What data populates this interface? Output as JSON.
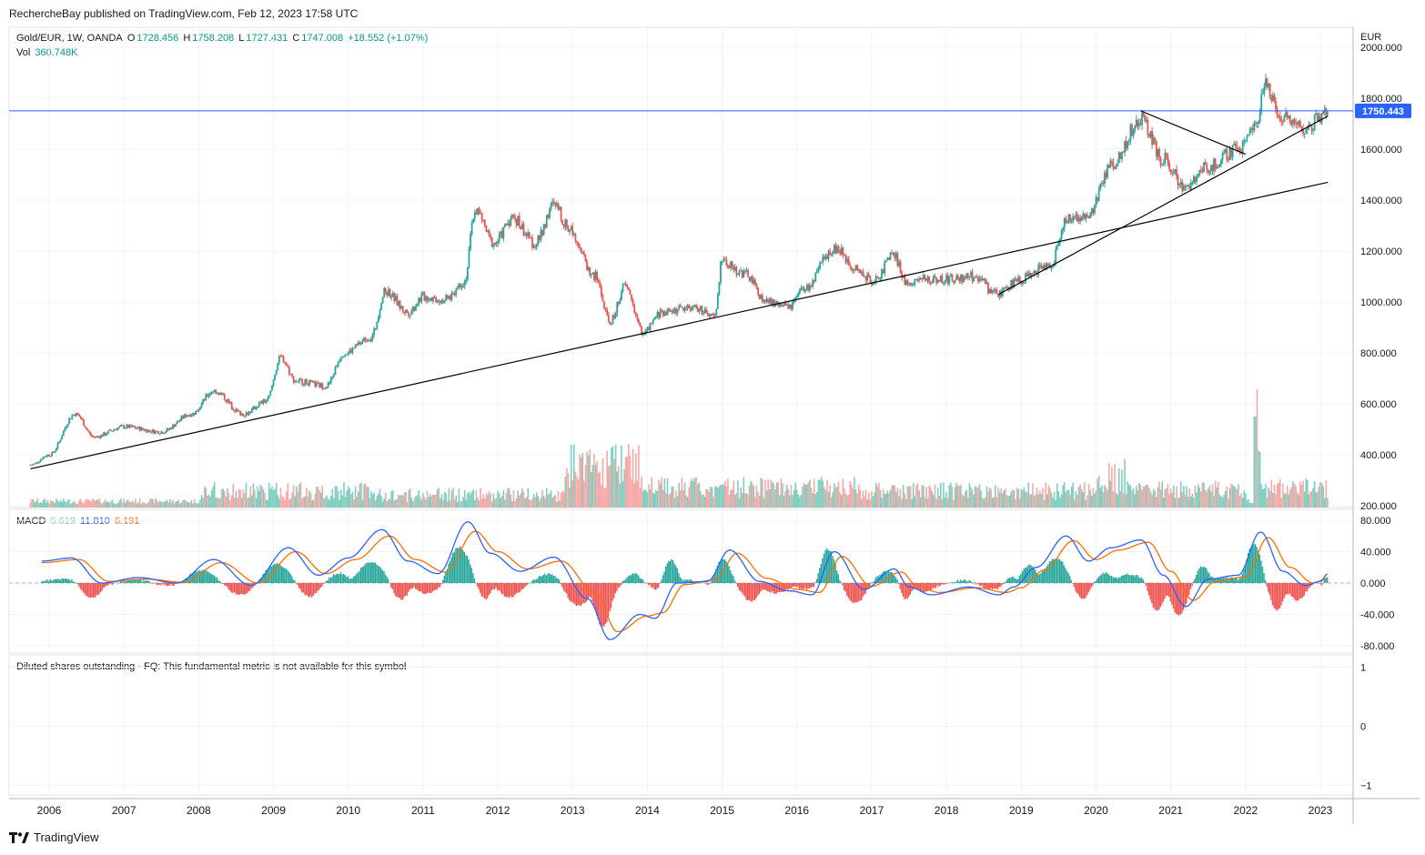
{
  "header": {
    "publisher": "RechercheBay published on TradingView.com, Feb 12, 2023 17:58 UTC"
  },
  "price_legend": {
    "symbol": "Gold/EUR, 1W, OANDA",
    "o_label": "O",
    "o": "1728.456",
    "h_label": "H",
    "h": "1758.208",
    "l_label": "L",
    "l": "1727.431",
    "c_label": "C",
    "c": "1747.008",
    "change": "+18.552 (+1.07%)",
    "vol_label": "Vol",
    "vol": "360.748K"
  },
  "macd_legend": {
    "label": "MACD",
    "hist": "5.619",
    "macd": "11.810",
    "signal": "6.191"
  },
  "fund_legend": {
    "text": "Diluted shares outstanding · FQ: This fundamental metric is not available for this symbol"
  },
  "currency": "EUR",
  "last_price_tag": "1750.443",
  "brand": {
    "name": "TradingView"
  },
  "colors": {
    "up": "#26a69a",
    "down": "#ef5350",
    "macd": "#2962ff",
    "signal": "#ff6d00",
    "price_line": "#2962ff",
    "trendline": "#000000"
  },
  "chart_data": [
    {
      "type": "candlestick",
      "pane": "price",
      "x_ticks": [
        "2006",
        "2007",
        "2008",
        "2009",
        "2010",
        "2011",
        "2012",
        "2013",
        "2014",
        "2015",
        "2016",
        "2017",
        "2018",
        "2019",
        "2020",
        "2021",
        "2022",
        "2023"
      ],
      "y_ticks": [
        "2000.000",
        "1800.000",
        "1600.000",
        "1400.000",
        "1200.000",
        "1000.000",
        "800.000",
        "600.000",
        "400.000",
        "200.000"
      ],
      "ylim": [
        200,
        2000
      ],
      "weekly_close_anchors": [
        [
          2005.75,
          360
        ],
        [
          2006.0,
          400
        ],
        [
          2006.35,
          560
        ],
        [
          2006.6,
          470
        ],
        [
          2007.0,
          510
        ],
        [
          2007.5,
          490
        ],
        [
          2007.9,
          560
        ],
        [
          2008.2,
          650
        ],
        [
          2008.6,
          560
        ],
        [
          2008.9,
          610
        ],
        [
          2009.1,
          780
        ],
        [
          2009.3,
          690
        ],
        [
          2009.7,
          670
        ],
        [
          2009.95,
          800
        ],
        [
          2010.3,
          860
        ],
        [
          2010.5,
          1040
        ],
        [
          2010.8,
          960
        ],
        [
          2011.0,
          1020
        ],
        [
          2011.3,
          1010
        ],
        [
          2011.55,
          1080
        ],
        [
          2011.7,
          1360
        ],
        [
          2011.95,
          1230
        ],
        [
          2012.2,
          1330
        ],
        [
          2012.5,
          1230
        ],
        [
          2012.75,
          1380
        ],
        [
          2012.95,
          1290
        ],
        [
          2013.3,
          1100
        ],
        [
          2013.5,
          920
        ],
        [
          2013.7,
          1060
        ],
        [
          2013.95,
          880
        ],
        [
          2014.2,
          960
        ],
        [
          2014.6,
          980
        ],
        [
          2014.9,
          940
        ],
        [
          2015.0,
          1160
        ],
        [
          2015.3,
          1110
        ],
        [
          2015.6,
          1000
        ],
        [
          2015.9,
          980
        ],
        [
          2016.1,
          1050
        ],
        [
          2016.5,
          1210
        ],
        [
          2016.85,
          1120
        ],
        [
          2017.0,
          1080
        ],
        [
          2017.3,
          1180
        ],
        [
          2017.45,
          1080
        ],
        [
          2017.8,
          1090
        ],
        [
          2018.1,
          1090
        ],
        [
          2018.4,
          1100
        ],
        [
          2018.65,
          1030
        ],
        [
          2019.0,
          1090
        ],
        [
          2019.4,
          1150
        ],
        [
          2019.6,
          1320
        ],
        [
          2019.9,
          1340
        ],
        [
          2020.2,
          1530
        ],
        [
          2020.6,
          1720
        ],
        [
          2020.9,
          1560
        ],
        [
          2021.2,
          1450
        ],
        [
          2021.5,
          1530
        ],
        [
          2021.9,
          1600
        ],
        [
          2022.15,
          1700
        ],
        [
          2022.25,
          1850
        ],
        [
          2022.5,
          1730
        ],
        [
          2022.8,
          1680
        ],
        [
          2023.0,
          1720
        ],
        [
          2023.1,
          1747
        ]
      ],
      "last_close": 1747.008,
      "horizontal_line": 1750.443,
      "trendlines": [
        {
          "from": [
            2005.75,
            345
          ],
          "to": [
            2023.1,
            1470
          ]
        },
        {
          "from": [
            2018.7,
            1030
          ],
          "to": [
            2023.1,
            1730
          ]
        },
        {
          "from": [
            2020.6,
            1750
          ],
          "to": [
            2022.0,
            1580
          ]
        }
      ],
      "volume_peak": "2022-03",
      "volume_last": "360.748K"
    },
    {
      "type": "line",
      "pane": "MACD",
      "y_ticks": [
        "80.000",
        "40.000",
        "0.000",
        "-40.000",
        "-80.000"
      ],
      "ylim": [
        -80,
        80
      ],
      "macd_anchors": [
        [
          2005.9,
          28
        ],
        [
          2006.3,
          32
        ],
        [
          2006.7,
          0
        ],
        [
          2007.2,
          7
        ],
        [
          2007.7,
          0
        ],
        [
          2008.2,
          30
        ],
        [
          2008.7,
          -3
        ],
        [
          2009.2,
          45
        ],
        [
          2009.6,
          10
        ],
        [
          2010.0,
          32
        ],
        [
          2010.45,
          68
        ],
        [
          2010.8,
          28
        ],
        [
          2011.2,
          12
        ],
        [
          2011.6,
          78
        ],
        [
          2011.9,
          38
        ],
        [
          2012.3,
          15
        ],
        [
          2012.75,
          33
        ],
        [
          2013.2,
          -20
        ],
        [
          2013.5,
          -72
        ],
        [
          2013.9,
          -40
        ],
        [
          2014.1,
          -45
        ],
        [
          2014.4,
          0
        ],
        [
          2014.8,
          2
        ],
        [
          2015.1,
          42
        ],
        [
          2015.5,
          2
        ],
        [
          2015.9,
          -10
        ],
        [
          2016.2,
          -15
        ],
        [
          2016.5,
          40
        ],
        [
          2016.9,
          -8
        ],
        [
          2017.3,
          18
        ],
        [
          2017.5,
          -5
        ],
        [
          2017.8,
          -15
        ],
        [
          2018.3,
          -5
        ],
        [
          2018.7,
          -15
        ],
        [
          2018.9,
          -5
        ],
        [
          2019.2,
          20
        ],
        [
          2019.6,
          60
        ],
        [
          2019.9,
          28
        ],
        [
          2020.2,
          45
        ],
        [
          2020.6,
          55
        ],
        [
          2020.9,
          10
        ],
        [
          2021.2,
          -30
        ],
        [
          2021.5,
          5
        ],
        [
          2021.9,
          10
        ],
        [
          2022.2,
          65
        ],
        [
          2022.5,
          15
        ],
        [
          2022.8,
          -3
        ],
        [
          2023.0,
          2
        ],
        [
          2023.1,
          11.81
        ]
      ],
      "signal_anchors": [
        [
          2005.9,
          26
        ],
        [
          2006.4,
          30
        ],
        [
          2006.8,
          2
        ],
        [
          2007.3,
          5
        ],
        [
          2007.8,
          1
        ],
        [
          2008.3,
          26
        ],
        [
          2008.8,
          0
        ],
        [
          2009.3,
          40
        ],
        [
          2009.7,
          12
        ],
        [
          2010.1,
          30
        ],
        [
          2010.55,
          60
        ],
        [
          2010.9,
          30
        ],
        [
          2011.3,
          14
        ],
        [
          2011.7,
          66
        ],
        [
          2012.0,
          40
        ],
        [
          2012.4,
          18
        ],
        [
          2012.85,
          28
        ],
        [
          2013.3,
          -12
        ],
        [
          2013.6,
          -62
        ],
        [
          2014.0,
          -42
        ],
        [
          2014.2,
          -38
        ],
        [
          2014.5,
          -2
        ],
        [
          2014.9,
          4
        ],
        [
          2015.2,
          38
        ],
        [
          2015.6,
          6
        ],
        [
          2016.0,
          -8
        ],
        [
          2016.3,
          -12
        ],
        [
          2016.6,
          34
        ],
        [
          2017.0,
          -4
        ],
        [
          2017.4,
          14
        ],
        [
          2017.6,
          -3
        ],
        [
          2017.9,
          -12
        ],
        [
          2018.4,
          -6
        ],
        [
          2018.8,
          -12
        ],
        [
          2019.0,
          -6
        ],
        [
          2019.3,
          16
        ],
        [
          2019.7,
          54
        ],
        [
          2020.0,
          30
        ],
        [
          2020.3,
          42
        ],
        [
          2020.7,
          52
        ],
        [
          2021.0,
          15
        ],
        [
          2021.3,
          -22
        ],
        [
          2021.6,
          2
        ],
        [
          2022.0,
          8
        ],
        [
          2022.3,
          58
        ],
        [
          2022.6,
          20
        ],
        [
          2022.9,
          0
        ],
        [
          2023.1,
          6.191
        ]
      ],
      "histogram_last": 5.619
    },
    {
      "type": "line",
      "pane": "fundamental",
      "y_ticks": [
        "1",
        "0",
        "−1"
      ],
      "ylim": [
        -1,
        1
      ]
    }
  ]
}
